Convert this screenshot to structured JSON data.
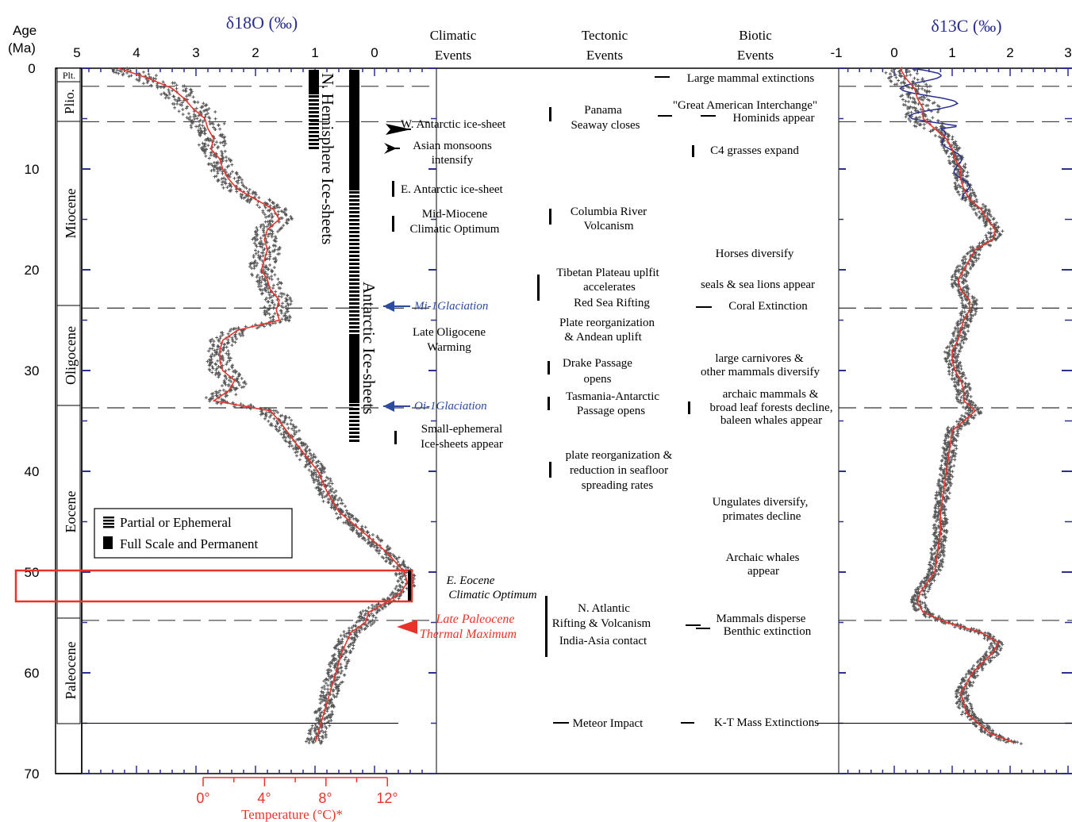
{
  "colors": {
    "axis": "#000000",
    "isotope_axis": "#2b2f8f",
    "data": "#555555",
    "trend": "#e8332a",
    "temperature": "#e8332a",
    "highlight": "#e8332a",
    "blue_label": "#2b4aa0",
    "carbon_line": "#2b2f8f"
  },
  "header": {
    "age_label": "Age",
    "age_unit": "(Ma)",
    "d18o_label": "δ18O (‰)",
    "d13c_label": "δ13C (‰)",
    "climatic": [
      "Climatic",
      "Events"
    ],
    "tectonic": [
      "Tectonic",
      "Events"
    ],
    "biotic": [
      "Biotic",
      "Events"
    ]
  },
  "temperature_axis": {
    "title": "Temperature (°C)*",
    "ticks": [
      "0°",
      "4°",
      "8°",
      "12°"
    ]
  },
  "epochs": [
    "Plt.",
    "Plio.",
    "Miocene",
    "Oligocene",
    "Eocene",
    "Paleocene"
  ],
  "ice_labels": {
    "north": "N. Hemisphere Ice-sheets",
    "antarctic": "Antarctic Ice-sheets"
  },
  "legend": {
    "partial": "Partial or Ephemeral",
    "full": "Full Scale and Permanent"
  },
  "climatic_events": [
    {
      "lines": [
        "W. Antarctic ice-sheet"
      ]
    },
    {
      "lines": [
        "Asian monsoons",
        "intensify"
      ]
    },
    {
      "lines": [
        "E. Antarctic ice-sheet"
      ]
    },
    {
      "lines": [
        "Mid-Miocene",
        "Climatic Optimum"
      ]
    },
    {
      "lines": [
        "Mi-1Glaciation"
      ]
    },
    {
      "lines": [
        "Late Oligocene",
        "Warming"
      ]
    },
    {
      "lines": [
        "Oi-1Glaciation"
      ]
    },
    {
      "lines": [
        "Small-ephemeral",
        "Ice-sheets appear"
      ]
    },
    {
      "lines": [
        "E. Eocene",
        "Climatic Optimum"
      ]
    },
    {
      "lines": [
        "Late Paleocene",
        "Thermal Maximum"
      ]
    }
  ],
  "tectonic_events": [
    {
      "lines": [
        "Panama",
        "Seaway closes"
      ]
    },
    {
      "lines": [
        "Columbia River",
        "Volcanism"
      ]
    },
    {
      "lines": [
        "Tibetan Plateau uplfit",
        "accelerates"
      ]
    },
    {
      "lines": [
        "Red Sea Rifting"
      ]
    },
    {
      "lines": [
        "Plate reorganization",
        "& Andean uplift"
      ]
    },
    {
      "lines": [
        "Drake Passage",
        "opens"
      ]
    },
    {
      "lines": [
        "Tasmania-Antarctic",
        "Passage opens"
      ]
    },
    {
      "lines": [
        "plate reorganization &",
        "reduction in seafloor",
        "spreading rates"
      ]
    },
    {
      "lines": [
        "N. Atlantic",
        "Rifting & Volcanism"
      ]
    },
    {
      "lines": [
        "India-Asia contact"
      ]
    },
    {
      "lines": [
        "Meteor Impact"
      ]
    }
  ],
  "biotic_events": [
    {
      "lines": [
        "Large mammal extinctions"
      ]
    },
    {
      "lines": [
        "\"Great American Interchange\""
      ]
    },
    {
      "lines": [
        "Hominids appear"
      ]
    },
    {
      "lines": [
        "C4 grasses expand"
      ]
    },
    {
      "lines": [
        "Horses diversify"
      ]
    },
    {
      "lines": [
        "seals & sea lions appear"
      ]
    },
    {
      "lines": [
        "Coral Extinction"
      ]
    },
    {
      "lines": [
        "large carnivores &",
        "other mammals diversify"
      ]
    },
    {
      "lines": [
        "archaic mammals &",
        "broad leaf forests decline,",
        "baleen whales appear"
      ]
    },
    {
      "lines": [
        "Ungulates diversify,",
        "primates decline"
      ]
    },
    {
      "lines": [
        "Archaic whales",
        "appear"
      ]
    },
    {
      "lines": [
        "Mammals disperse"
      ]
    },
    {
      "lines": [
        "Benthic extinction"
      ]
    },
    {
      "lines": [
        "K-T Mass Extinctions"
      ]
    }
  ],
  "chart_data": {
    "type": "line",
    "y_axis": {
      "label": "Age (Ma)",
      "range": [
        0,
        70
      ],
      "ticks": [
        0,
        10,
        20,
        30,
        40,
        50,
        60,
        70
      ],
      "inverted": true
    },
    "d18o_axis": {
      "label": "δ18O (‰)",
      "range": [
        5,
        -0.6
      ],
      "ticks": [
        5,
        4,
        3,
        2,
        1,
        0
      ],
      "reversed": true
    },
    "d13c_axis": {
      "label": "δ13C (‰)",
      "range": [
        -1,
        3
      ],
      "ticks": [
        -1,
        0,
        1,
        2,
        3
      ]
    },
    "temperature_axis": {
      "label": "Temperature (°C)*",
      "ticks": [
        0,
        4,
        8,
        12
      ]
    },
    "boundaries_ma": [
      1.8,
      5.3,
      23.8,
      33.7,
      54.8,
      65
    ],
    "series": [
      {
        "name": "δ18O",
        "age": [
          0,
          1,
          2,
          3,
          4,
          5,
          6,
          7,
          8,
          9,
          10,
          11,
          12,
          13,
          14,
          15,
          16,
          17,
          18,
          19,
          20,
          21,
          22,
          23,
          24,
          25,
          26,
          27,
          28,
          29,
          30,
          31,
          32,
          33,
          34,
          35,
          37,
          40,
          42,
          44,
          46,
          48,
          50,
          51,
          52,
          53,
          54,
          55,
          56,
          58,
          60,
          62,
          64,
          66,
          67
        ],
        "values": [
          4.3,
          3.8,
          3.4,
          3.2,
          3.05,
          2.85,
          2.8,
          2.7,
          2.75,
          2.6,
          2.55,
          2.45,
          2.3,
          2.0,
          1.7,
          1.6,
          1.8,
          1.85,
          1.8,
          1.85,
          1.9,
          1.8,
          1.75,
          1.6,
          1.65,
          1.6,
          2.3,
          2.55,
          2.6,
          2.6,
          2.55,
          2.35,
          2.45,
          2.7,
          1.75,
          1.6,
          1.35,
          0.95,
          0.8,
          0.6,
          0.2,
          -0.2,
          -0.5,
          -0.55,
          -0.45,
          -0.2,
          0.1,
          0.15,
          0.4,
          0.55,
          0.65,
          0.75,
          0.85,
          0.95,
          1.0
        ]
      },
      {
        "name": "δ13C",
        "age": [
          0,
          1,
          2,
          3,
          4,
          5,
          6,
          7,
          8,
          9,
          10,
          11,
          12,
          13,
          14,
          15,
          16,
          17,
          18,
          19,
          20,
          21,
          22,
          23,
          24,
          25,
          26,
          27,
          28,
          29,
          30,
          31,
          32,
          33,
          34,
          35,
          36,
          38,
          40,
          42,
          44,
          46,
          48,
          50,
          52,
          53,
          54,
          55,
          56,
          57,
          58,
          60,
          62,
          64,
          66,
          67
        ],
        "values": [
          0.1,
          0.2,
          0.35,
          0.4,
          0.5,
          0.5,
          0.7,
          0.9,
          1.0,
          1.05,
          1.15,
          1.15,
          1.2,
          1.3,
          1.5,
          1.6,
          1.75,
          1.7,
          1.4,
          1.3,
          1.2,
          1.1,
          1.15,
          1.3,
          1.3,
          1.2,
          1.15,
          1.1,
          1.0,
          1.0,
          1.05,
          1.15,
          1.2,
          1.2,
          1.4,
          1.2,
          1.0,
          0.95,
          0.9,
          0.85,
          0.8,
          0.8,
          0.75,
          0.7,
          0.45,
          0.4,
          0.5,
          0.9,
          1.5,
          1.8,
          1.7,
          1.35,
          1.15,
          1.25,
          1.65,
          2.1
        ]
      }
    ]
  }
}
